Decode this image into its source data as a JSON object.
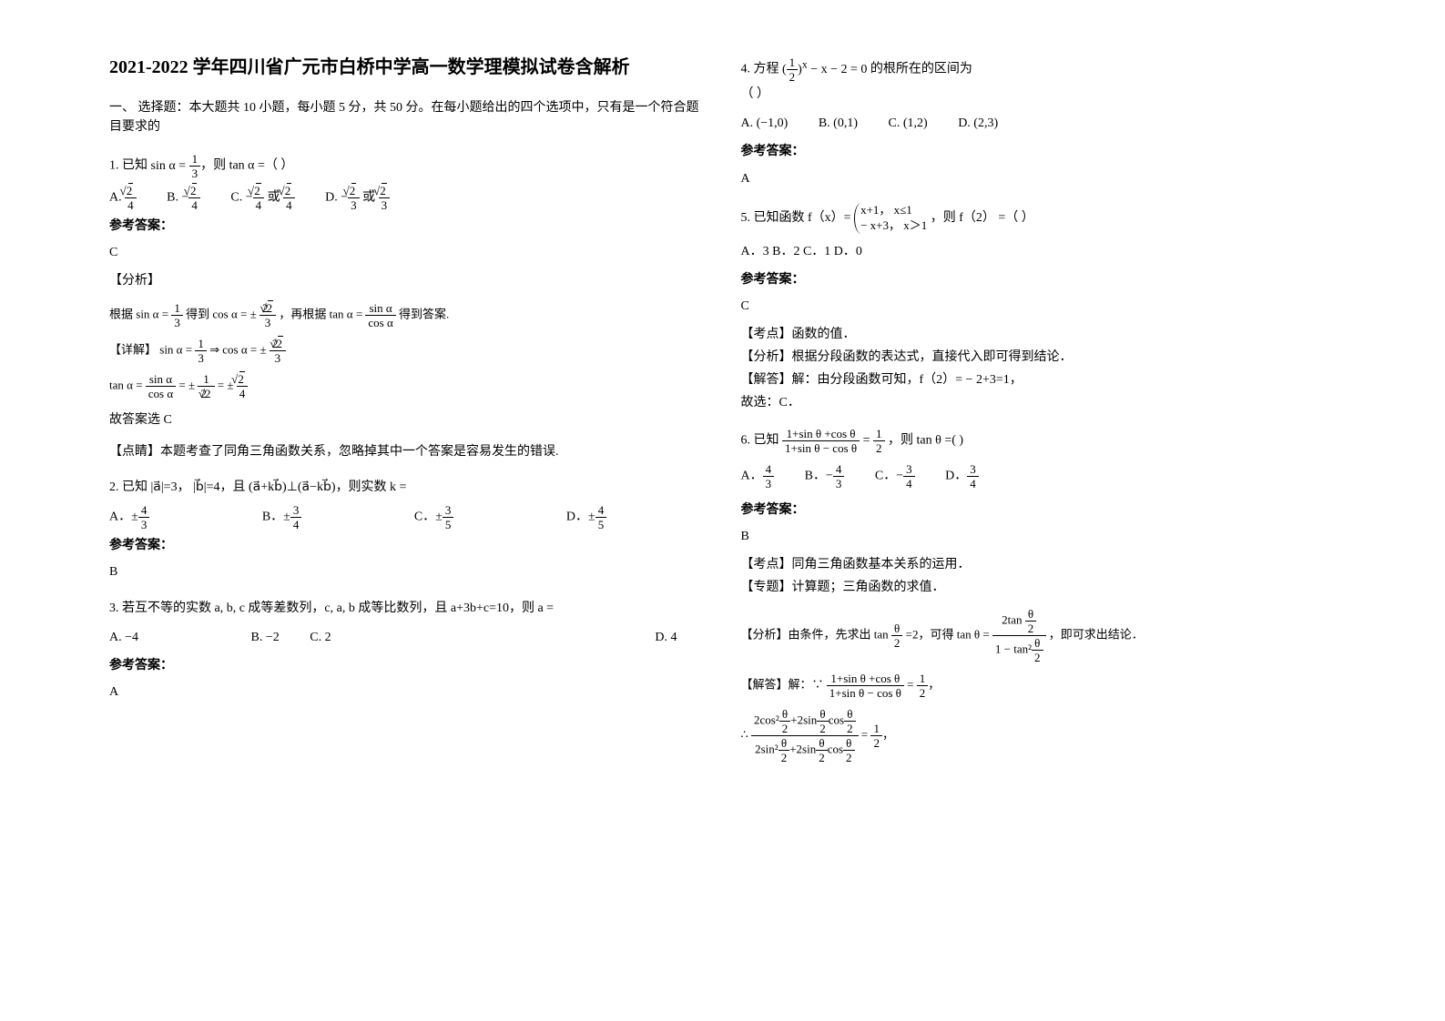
{
  "title": "2021-2022 学年四川省广元市白桥中学高一数学理模拟试卷含解析",
  "section_intro": "一、 选择题：本大题共 10 小题，每小题 5 分，共 50 分。在每小题给出的四个选项中，只有是一个符合题目要求的",
  "q1": {
    "stem_prefix": "1. 已知",
    "stem_suffix": "，则 tan α =（ ）",
    "optA_prefix": "A.",
    "optB_prefix": "B.",
    "optC_prefix": "C.",
    "optD_prefix": "D.",
    "answer_label": "参考答案：",
    "answer": "C",
    "analysis_label": "【分析】",
    "analysis_line1_prefix": "根据",
    "analysis_line1_mid": " 得到 ",
    "analysis_line1_mid2": "，再根据 ",
    "analysis_line1_suffix": " 得到答案.",
    "detail_label": "【详解】",
    "result_prefix": "故答案选 C",
    "dianping": "【点睛】本题考查了同角三角函数关系，忽略掉其中一个答案是容易发生的错误."
  },
  "q2": {
    "stem_prefix": "2. 已知",
    "stem_a": "|a⃗|=3",
    "stem_comma1": "，",
    "stem_b": "|b⃗|=4",
    "stem_comma2": "，且",
    "stem_perp": "(a⃗+kb⃗)⊥(a⃗−kb⃗)",
    "stem_suffix": "，则实数 k =",
    "optA": "A．",
    "optB": "B．",
    "optC": "C．",
    "optD": "D．",
    "answer_label": "参考答案：",
    "answer": "B"
  },
  "q3": {
    "stem": "3. 若互不等的实数 a, b, c 成等差数列，c, a, b 成等比数列，且 a+3b+c=10，则 a =",
    "optA": "A. −4",
    "optB": "B. −2",
    "optC": "C. 2",
    "optD": "D. 4",
    "answer_label": "参考答案：",
    "answer": "A"
  },
  "q4": {
    "stem_prefix": "4. 方程",
    "stem_suffix": "的根所在的区间为",
    "paren": "（        ）",
    "optA": "A. (−1,0)",
    "optB": "B. (0,1)",
    "optC": "C. (1,2)",
    "optD": "D. (2,3)",
    "answer_label": "参考答案：",
    "answer": "A"
  },
  "q5": {
    "stem_prefix": "5. 已知函数 f（x）=",
    "case1": "x+1， x≤1",
    "case2": "− x+3， x＞1",
    "stem_suffix": "，则 f（2） =（     ）",
    "opts": "A．3    B．2    C．1    D．0",
    "answer_label": "参考答案：",
    "answer": "C",
    "kaodian": "【考点】函数的值．",
    "fenxi": "【分析】根据分段函数的表达式，直接代入即可得到结论．",
    "jieda": "【解答】解：由分段函数可知，f（2）= − 2+3=1，",
    "guxuan": "故选：C．"
  },
  "q6": {
    "stem_prefix": "6. 已知",
    "stem_eq": "=",
    "stem_suffix": "，则 tan θ =(            )",
    "optA": "A．",
    "optB": "B．",
    "optC": "C．",
    "optD": "D．",
    "answer_label": "参考答案：",
    "answer": "B",
    "kaodian": "【考点】同角三角函数基本关系的运用．",
    "zhuanti": "【专题】计算题；三角函数的求值．",
    "fenxi_prefix": "【分析】由条件，先求出 tan ",
    "fenxi_mid": " =2，可得 tan θ = ",
    "fenxi_suffix": "，即可求出结论．",
    "jieda_prefix": "【解答】解：∵",
    "jieda_eq": "=",
    "jieda_suffix": "，",
    "therefore": "∴",
    "final_eq": "=",
    "final_suffix": "，"
  }
}
